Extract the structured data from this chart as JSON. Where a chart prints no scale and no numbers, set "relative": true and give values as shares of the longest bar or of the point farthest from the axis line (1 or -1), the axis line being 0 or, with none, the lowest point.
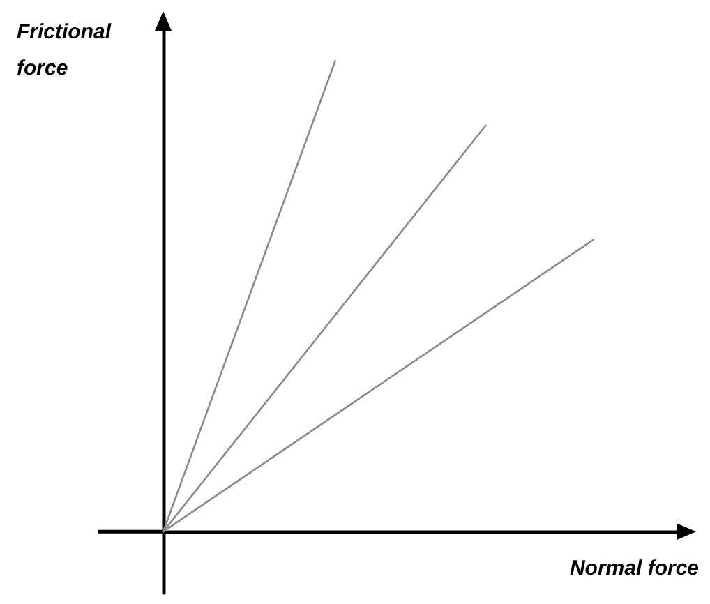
{
  "chart_data": {
    "type": "line",
    "relative": true,
    "xlabel": "Normal force",
    "ylabel": "Frictional force",
    "grid": false,
    "marker": "none",
    "line_style": "solid",
    "categories": [
      null,
      null,
      null,
      null,
      null,
      null,
      null,
      null,
      null,
      null,
      null,
      null,
      null,
      null,
      null,
      null,
      null,
      null,
      null,
      null,
      null,
      null,
      null,
      null,
      null
    ],
    "series": [
      {
        "color": "#8a8a8a",
        "values": [
          0,
          null,
          null,
          null,
          null,
          null,
          null,
          null,
          1,
          null,
          null,
          null,
          null,
          null,
          null,
          null,
          null,
          null,
          null,
          null,
          null,
          null,
          null,
          null,
          null
        ]
      },
      {
        "color": "#8a8a8a",
        "values": [
          0,
          null,
          null,
          null,
          null,
          null,
          null,
          null,
          null,
          null,
          null,
          null,
          null,
          null,
          null,
          0.863,
          null,
          null,
          null,
          null,
          null,
          null,
          null,
          null,
          null
        ]
      },
      {
        "color": "#8a8a8a",
        "values": [
          0,
          null,
          null,
          null,
          null,
          null,
          null,
          null,
          null,
          null,
          null,
          null,
          null,
          null,
          null,
          null,
          null,
          null,
          null,
          null,
          0.62,
          null,
          null,
          null,
          null
        ]
      }
    ]
  }
}
